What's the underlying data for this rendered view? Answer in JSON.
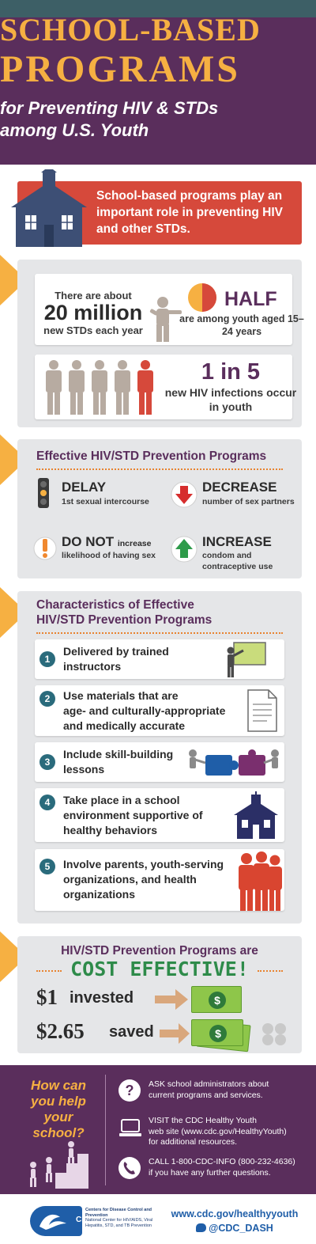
{
  "header": {
    "line1": "SCHOOL-BASED",
    "line2": "PROGRAMS",
    "line3": "for Preventing HIV & STDs",
    "line4": "among U.S. Youth"
  },
  "banner": {
    "text": "School-based programs play an important role in preventing HIV and other STDs."
  },
  "stats": {
    "std_pre": "There are about",
    "std_big": "20 million",
    "std_post": "new STDs each year",
    "half_big": "HALF",
    "half_sub": "are among youth aged 15–24 years",
    "hiv_big": "1 in 5",
    "hiv_sub": "new HIV infections occur in youth"
  },
  "effective": {
    "title": "Effective HIV/STD Prevention Programs",
    "items": [
      {
        "big": "DELAY",
        "small": "1st sexual intercourse"
      },
      {
        "big": "DECREASE",
        "small": "number of sex partners"
      },
      {
        "big": "DO NOT",
        "inline": "increase",
        "small": "likelihood of having sex"
      },
      {
        "big": "INCREASE",
        "small": "condom and contraceptive use"
      }
    ]
  },
  "characteristics": {
    "title_line1": "Characteristics of Effective",
    "title_line2": "HIV/STD Prevention Programs",
    "items": [
      {
        "num": "1",
        "text_lines": [
          "Delivered by trained",
          "instructors"
        ]
      },
      {
        "num": "2",
        "text_lines": [
          "Use materials that are",
          "age- and culturally-appropriate",
          "and medically accurate"
        ]
      },
      {
        "num": "3",
        "text_lines": [
          "Include skill-building",
          "lessons"
        ]
      },
      {
        "num": "4",
        "text_lines": [
          "Take place in a school",
          "environment supportive of",
          "healthy behaviors"
        ]
      },
      {
        "num": "5",
        "text_lines": [
          "Involve parents, youth-serving",
          "organizations, and health",
          "organizations"
        ]
      }
    ]
  },
  "cost": {
    "title": "HIV/STD Prevention Programs are",
    "effective": "COST EFFECTIVE!",
    "invested_amount": "$1",
    "invested_label": "invested",
    "saved_amount": "$2.65",
    "saved_label": "saved",
    "bill_symbol": "$"
  },
  "help": {
    "question_lines": [
      "How can",
      "you help",
      "your",
      "school?"
    ],
    "actions": [
      {
        "icon": "question-icon",
        "lines": [
          "ASK school administrators about",
          "current programs and services."
        ]
      },
      {
        "icon": "laptop-icon",
        "lines": [
          "VISIT the CDC Healthy Youth",
          "web site (www.cdc.gov/HealthyYouth)",
          "for additional resources."
        ]
      },
      {
        "icon": "phone-icon",
        "lines": [
          "CALL 1-800-CDC-INFO (800-232-4636)",
          "if you have any further questions."
        ]
      }
    ]
  },
  "footer": {
    "logo_text": "CDC",
    "org_bold": "Centers for Disease Control and Prevention",
    "org_sub": "National Center for HIV/AIDS, Viral Hepatitis, STD, and TB Prevention",
    "url": "www.cdc.gov/healthyyouth",
    "twitter": "@CDC_DASH"
  },
  "colors": {
    "purple": "#5a2e5c",
    "orange": "#f6b042",
    "red": "#d6493b",
    "teal": "#2a6b7c",
    "green": "#2e8b4a",
    "blue": "#1f5ea8"
  }
}
